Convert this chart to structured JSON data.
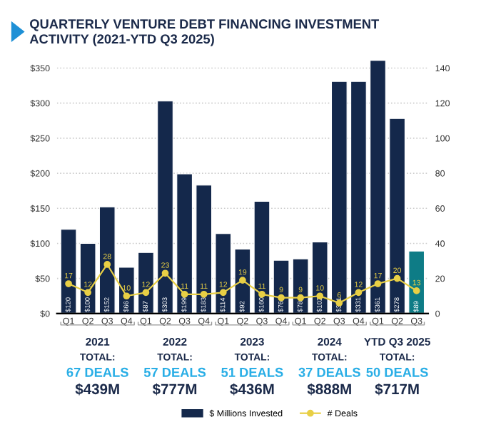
{
  "chart_data": {
    "type": "bar",
    "title": "QUARTERLY VENTURE DEBT FINANCING INVESTMENT\nACTIVITY (2021-YTD Q3 2025)",
    "categories": [
      "Q1",
      "Q2",
      "Q3",
      "Q4",
      "Q1",
      "Q2",
      "Q3",
      "Q4",
      "Q1",
      "Q2",
      "Q3",
      "Q4",
      "Q1",
      "Q2",
      "Q3",
      "Q4",
      "Q1",
      "Q2",
      "Q3"
    ],
    "series": [
      {
        "name": "$ Millions Invested",
        "color": "#14284b",
        "colors": [
          "#14284b",
          "#14284b",
          "#14284b",
          "#14284b",
          "#14284b",
          "#14284b",
          "#14284b",
          "#14284b",
          "#14284b",
          "#14284b",
          "#14284b",
          "#14284b",
          "#14284b",
          "#14284b",
          "#14284b",
          "#14284b",
          "#14284b",
          "#14284b",
          "#0e7c86"
        ],
        "values": [
          120,
          100,
          152,
          66,
          87,
          303,
          199,
          183,
          114,
          92,
          160,
          76,
          78,
          102,
          331,
          331,
          361,
          278,
          89
        ],
        "value_labels": [
          "$120",
          "$100",
          "$152",
          "$66",
          "$87",
          "$303",
          "$199",
          "$183",
          "$114",
          "$92",
          "$160",
          "$76",
          "$78",
          "$102",
          "$331",
          "$331",
          "$361",
          "$278",
          "$89"
        ]
      },
      {
        "name": "# Deals",
        "type": "line",
        "axis": "y2",
        "color": "#e8cf45",
        "marker": "circle",
        "values": [
          17,
          12,
          28,
          10,
          12,
          23,
          11,
          11,
          12,
          19,
          11,
          9,
          9,
          10,
          6,
          12,
          17,
          20,
          13
        ],
        "data_labels": true
      }
    ],
    "ylim": [
      0,
      364
    ],
    "yticks": [
      {
        "value": 0,
        "label": "$0"
      },
      {
        "value": 50,
        "label": "$50"
      },
      {
        "value": 100,
        "label": "$100"
      },
      {
        "value": 150,
        "label": "$150"
      },
      {
        "value": 200,
        "label": "$200"
      },
      {
        "value": 250,
        "label": "$250"
      },
      {
        "value": 300,
        "label": "$300"
      },
      {
        "value": 350,
        "label": "$350"
      }
    ],
    "y2lim": [
      0,
      145.6
    ],
    "y2ticks": [
      0,
      20,
      40,
      60,
      80,
      100,
      120,
      140
    ],
    "grid": "y",
    "legend": "bottom",
    "annotations": [
      "2021",
      "TOTAL:",
      "67 DEALS",
      "$439M",
      "2022",
      "TOTAL:",
      "57 DEALS",
      "$777M",
      "2023",
      "TOTAL:",
      "51 DEALS",
      "$436M",
      "2024",
      "TOTAL:",
      "37 DEALS",
      "$888M",
      "YTD Q3 2025",
      "TOTAL:",
      "50 DEALS",
      "$717M"
    ]
  }
}
